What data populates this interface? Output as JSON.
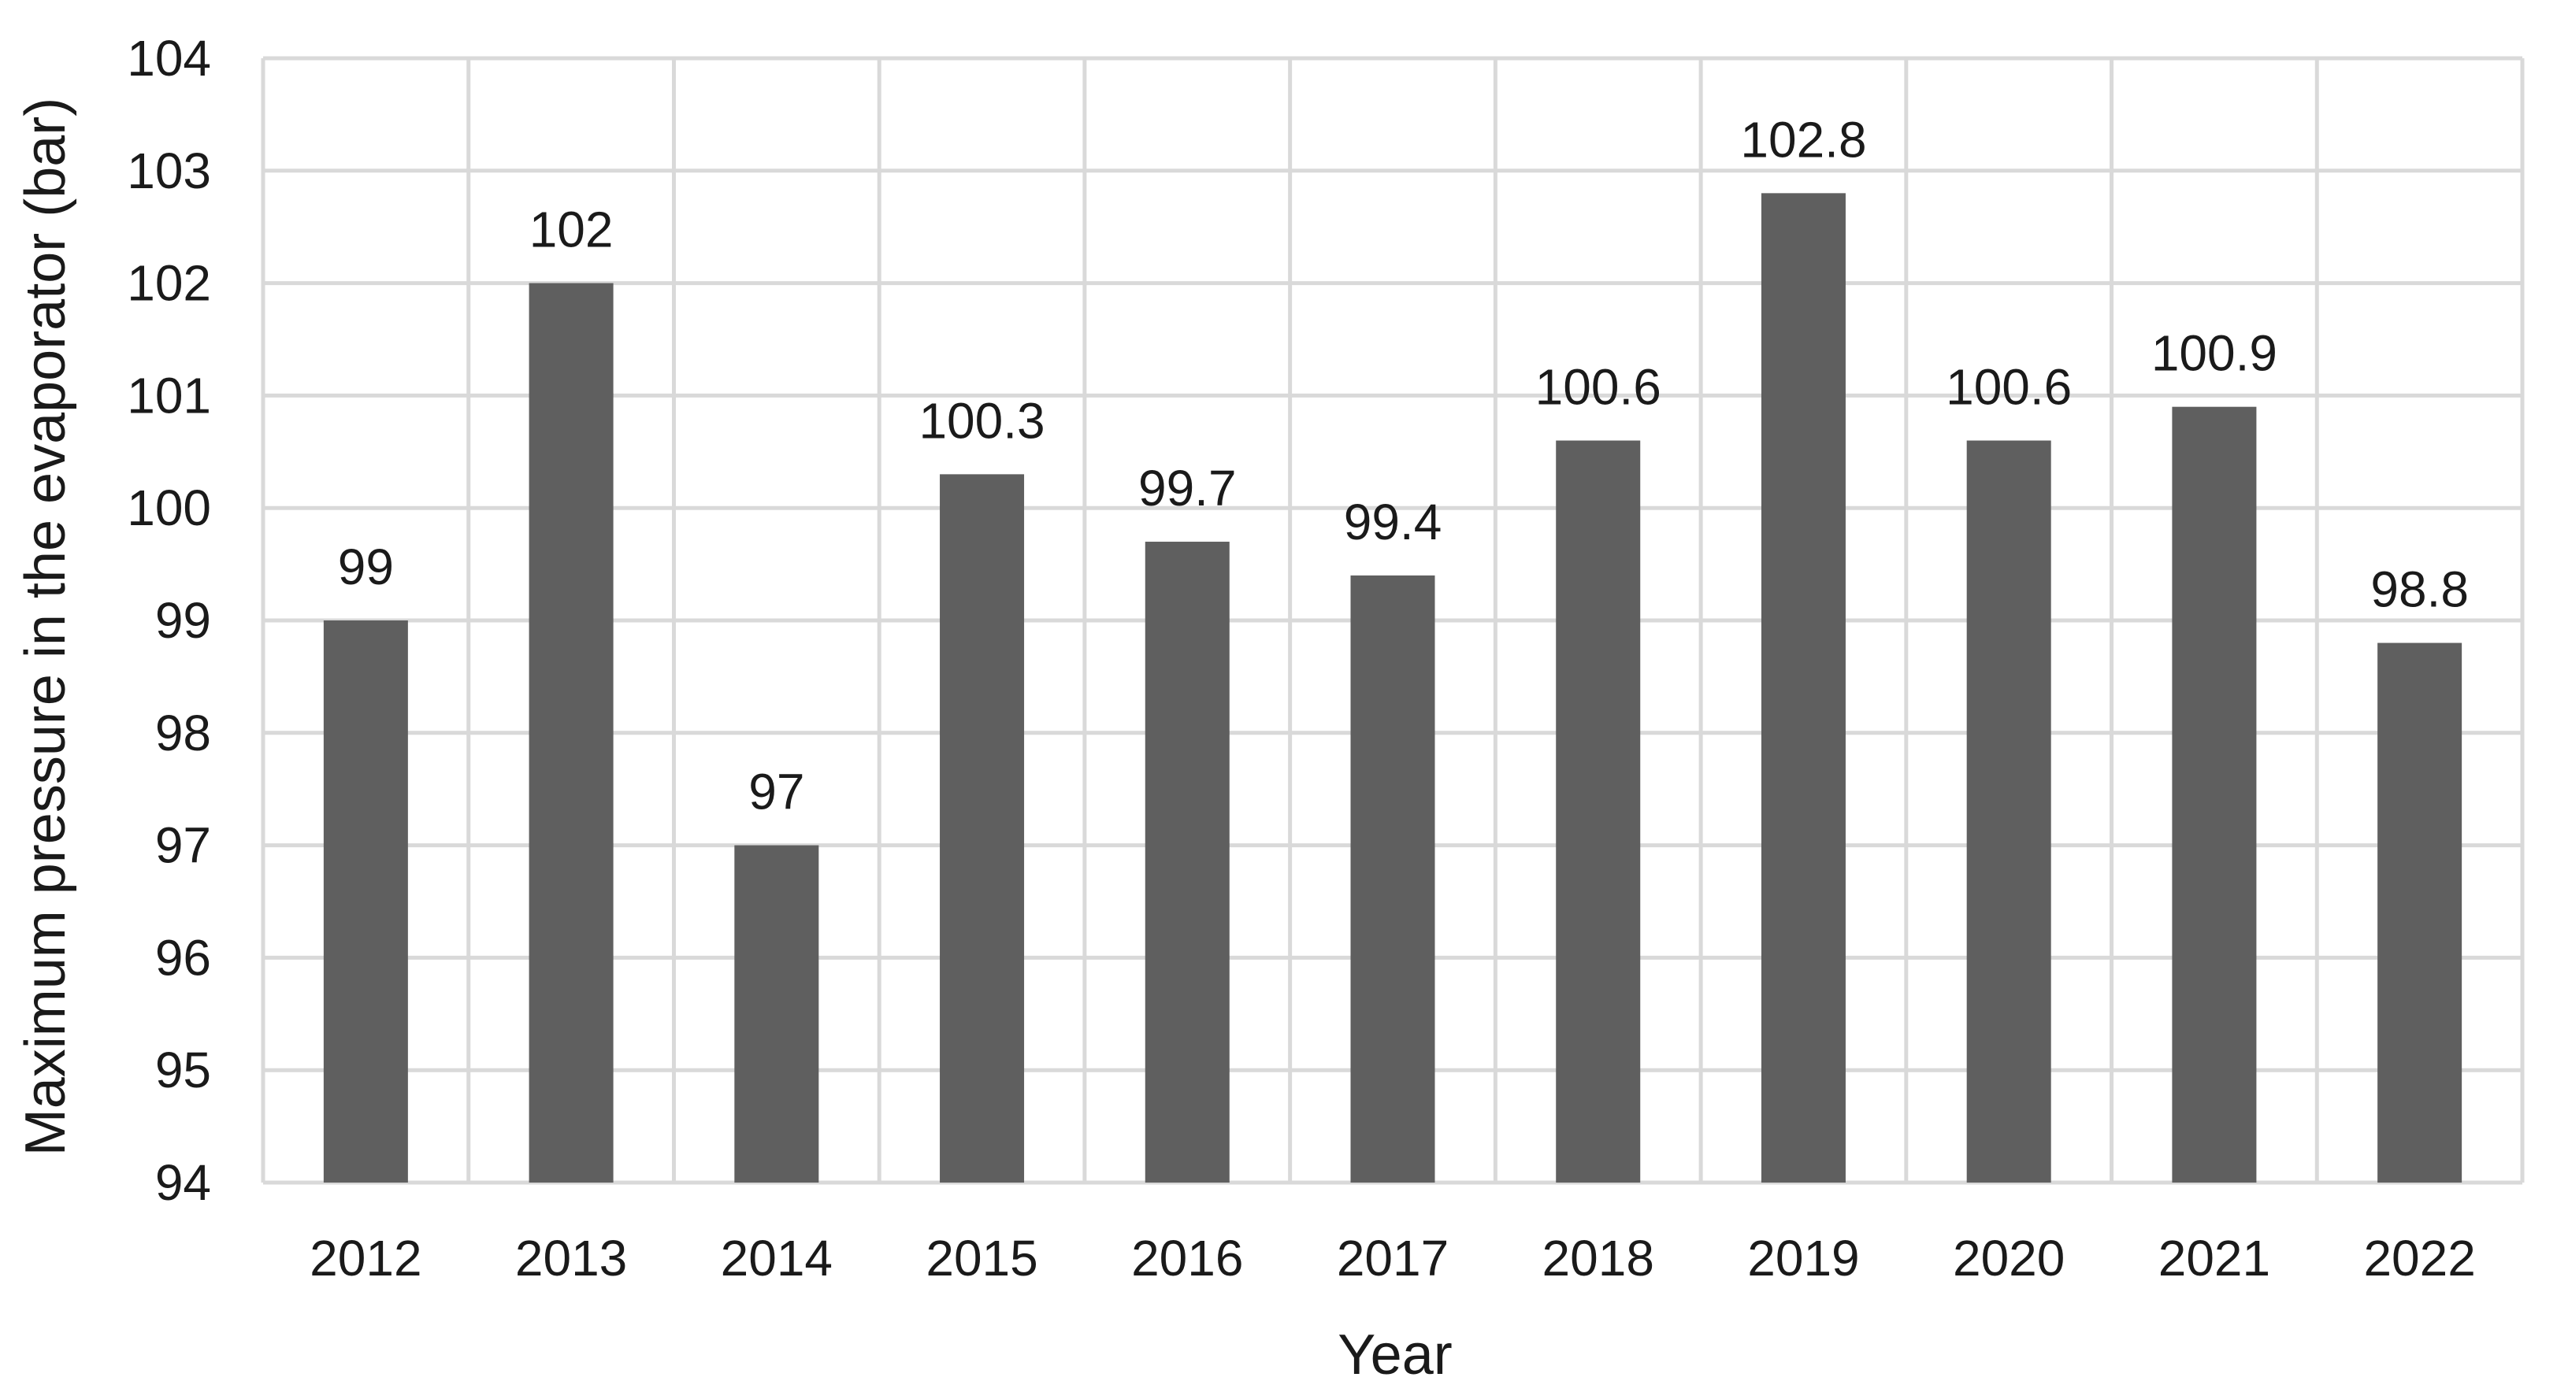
{
  "chart_data": {
    "type": "bar",
    "categories": [
      "2012",
      "2013",
      "2014",
      "2015",
      "2016",
      "2017",
      "2018",
      "2019",
      "2020",
      "2021",
      "2022"
    ],
    "values": [
      99,
      102,
      97,
      100.3,
      99.7,
      99.4,
      100.6,
      102.8,
      100.6,
      100.9,
      98.8
    ],
    "data_labels": [
      "99",
      "102",
      "97",
      "100.3",
      "99.7",
      "99.4",
      "100.6",
      "102.8",
      "100.6",
      "100.9",
      "98.8"
    ],
    "xlabel": "Year",
    "ylabel": "Maximum pressure in the evaporator (bar)",
    "ylim": [
      94,
      104
    ],
    "yticks": [
      "94",
      "95",
      "96",
      "97",
      "98",
      "99",
      "100",
      "101",
      "102",
      "103",
      "104"
    ],
    "grid": true,
    "bar_color": "#5f5f5f",
    "grid_color": "#d9d9d9"
  }
}
